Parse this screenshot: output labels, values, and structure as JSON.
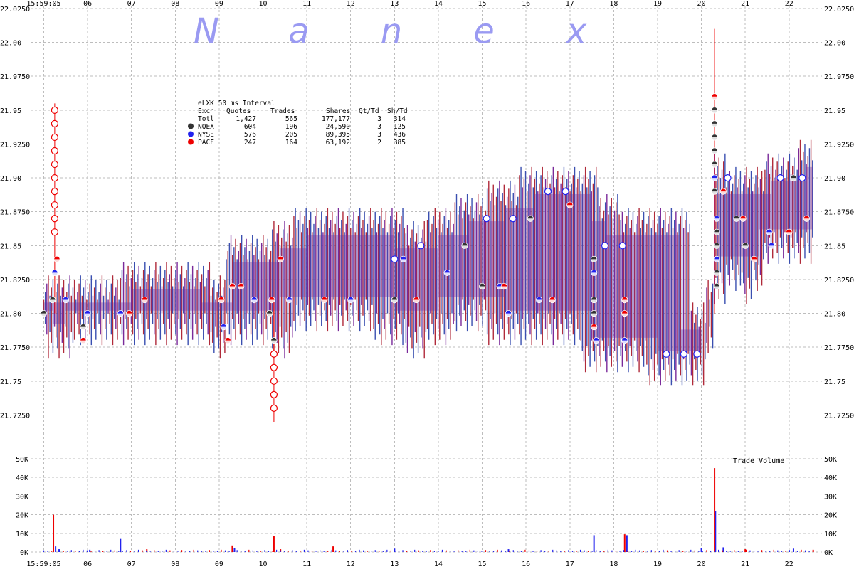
{
  "chart_data": [
    {
      "type": "line",
      "title": "",
      "watermark": "Nanex",
      "table": {
        "title": "eLXK 50 ms Interval",
        "headers": [
          "Exch",
          "Quotes",
          "Trades",
          "Shares",
          "Qt/Td",
          "Sh/Td"
        ],
        "rows": [
          {
            "exch": "Totl",
            "quotes": "1,427",
            "trades": "565",
            "shares": "177,177",
            "qt_td": "3",
            "sh_td": "314",
            "color": ""
          },
          {
            "exch": "NQEX",
            "quotes": "604",
            "trades": "196",
            "shares": "24,590",
            "qt_td": "3",
            "sh_td": "125",
            "color": "#333333"
          },
          {
            "exch": "NYSE",
            "quotes": "576",
            "trades": "205",
            "shares": "89,395",
            "qt_td": "3",
            "sh_td": "436",
            "color": "#2222ee"
          },
          {
            "exch": "PACF",
            "quotes": "247",
            "trades": "164",
            "shares": "63,192",
            "qt_td": "2",
            "sh_td": "385",
            "color": "#ee0000"
          }
        ]
      },
      "x_ticks": [
        "15:59:05",
        "06",
        "07",
        "08",
        "09",
        "10",
        "11",
        "12",
        "13",
        "14",
        "15",
        "16",
        "17",
        "18",
        "19",
        "20",
        "21",
        "22"
      ],
      "x_tick_seconds": [
        5,
        6,
        7,
        8,
        9,
        10,
        11,
        12,
        13,
        14,
        15,
        16,
        17,
        18,
        19,
        20,
        21,
        22
      ],
      "bottom_x_ticks": [
        "15:59:05",
        "06",
        "07",
        "08",
        "09",
        "10",
        "11",
        "12",
        "13",
        "14",
        "15",
        "16",
        "17",
        "18",
        "19",
        "20",
        "21",
        "22"
      ],
      "xlim_seconds": [
        4.7,
        22.75
      ],
      "y_ticks": [
        "22.0250",
        "22.00",
        "21.9750",
        "21.95",
        "21.9250",
        "21.90",
        "21.8750",
        "21.85",
        "21.8250",
        "21.80",
        "21.7750",
        "21.75",
        "21.7250"
      ],
      "ylim": [
        21.71,
        22.025
      ],
      "grid": true,
      "colors": {
        "nqex": "#333333",
        "nyse": "#2222ee",
        "pacf": "#ee0000",
        "spread": "#7a2a9a"
      },
      "bid_ask_profile": [
        {
          "x": 5.0,
          "bid": 21.8,
          "ask": 21.81
        },
        {
          "x": 5.2,
          "bid": 21.79,
          "ask": 21.81
        },
        {
          "x": 5.5,
          "bid": 21.79,
          "ask": 21.81
        },
        {
          "x": 5.9,
          "bid": 21.8,
          "ask": 21.81
        },
        {
          "x": 6.5,
          "bid": 21.8,
          "ask": 21.81
        },
        {
          "x": 7.0,
          "bid": 21.8,
          "ask": 21.82
        },
        {
          "x": 7.9,
          "bid": 21.8,
          "ask": 21.82
        },
        {
          "x": 8.6,
          "bid": 21.8,
          "ask": 21.82
        },
        {
          "x": 9.0,
          "bid": 21.79,
          "ask": 21.81
        },
        {
          "x": 9.3,
          "bid": 21.8,
          "ask": 21.84
        },
        {
          "x": 10.0,
          "bid": 21.8,
          "ask": 21.84
        },
        {
          "x": 10.4,
          "bid": 21.79,
          "ask": 21.85
        },
        {
          "x": 11.0,
          "bid": 21.81,
          "ask": 21.86
        },
        {
          "x": 12.0,
          "bid": 21.81,
          "ask": 21.86
        },
        {
          "x": 13.0,
          "bid": 21.8,
          "ask": 21.86
        },
        {
          "x": 13.5,
          "bid": 21.79,
          "ask": 21.85
        },
        {
          "x": 14.0,
          "bid": 21.8,
          "ask": 21.86
        },
        {
          "x": 14.7,
          "bid": 21.81,
          "ask": 21.87
        },
        {
          "x": 15.5,
          "bid": 21.8,
          "ask": 21.88
        },
        {
          "x": 16.2,
          "bid": 21.8,
          "ask": 21.89
        },
        {
          "x": 17.0,
          "bid": 21.8,
          "ask": 21.89
        },
        {
          "x": 17.5,
          "bid": 21.78,
          "ask": 21.89
        },
        {
          "x": 17.8,
          "bid": 21.78,
          "ask": 21.87
        },
        {
          "x": 18.5,
          "bid": 21.78,
          "ask": 21.86
        },
        {
          "x": 19.0,
          "bid": 21.77,
          "ask": 21.86
        },
        {
          "x": 19.5,
          "bid": 21.77,
          "ask": 21.86
        },
        {
          "x": 20.0,
          "bid": 21.77,
          "ask": 21.79
        },
        {
          "x": 20.2,
          "bid": 21.79,
          "ask": 21.81
        },
        {
          "x": 20.35,
          "bid": 21.83,
          "ask": 21.9
        },
        {
          "x": 20.8,
          "bid": 21.84,
          "ask": 21.89
        },
        {
          "x": 21.0,
          "bid": 21.83,
          "ask": 21.89
        },
        {
          "x": 21.3,
          "bid": 21.84,
          "ask": 21.89
        },
        {
          "x": 21.6,
          "bid": 21.86,
          "ask": 21.9
        },
        {
          "x": 22.0,
          "bid": 21.86,
          "ask": 21.9
        },
        {
          "x": 22.4,
          "bid": 21.86,
          "ask": 21.91
        },
        {
          "x": 22.55,
          "bid": 21.86,
          "ask": 21.91
        }
      ],
      "trades": [
        {
          "x": 5.0,
          "price": 21.8,
          "exch": "nqex"
        },
        {
          "x": 5.2,
          "price": 21.81,
          "exch": "nqex"
        },
        {
          "x": 5.25,
          "price": 21.83,
          "exch": "nyse"
        },
        {
          "x": 5.3,
          "price": 21.84,
          "exch": "pacf"
        },
        {
          "x": 5.5,
          "price": 21.81,
          "exch": "nyse"
        },
        {
          "x": 5.9,
          "price": 21.79,
          "exch": "nqex"
        },
        {
          "x": 5.9,
          "price": 21.78,
          "exch": "pacf"
        },
        {
          "x": 6.0,
          "price": 21.8,
          "exch": "nyse"
        },
        {
          "x": 6.75,
          "price": 21.8,
          "exch": "nyse"
        },
        {
          "x": 6.95,
          "price": 21.8,
          "exch": "pacf"
        },
        {
          "x": 7.3,
          "price": 21.81,
          "exch": "pacf"
        },
        {
          "x": 9.05,
          "price": 21.81,
          "exch": "pacf"
        },
        {
          "x": 9.1,
          "price": 21.79,
          "exch": "nyse"
        },
        {
          "x": 9.2,
          "price": 21.78,
          "exch": "pacf"
        },
        {
          "x": 9.3,
          "price": 21.82,
          "exch": "pacf"
        },
        {
          "x": 9.5,
          "price": 21.82,
          "exch": "pacf"
        },
        {
          "x": 9.8,
          "price": 21.81,
          "exch": "nyse"
        },
        {
          "x": 10.15,
          "price": 21.8,
          "exch": "nqex"
        },
        {
          "x": 10.2,
          "price": 21.81,
          "exch": "pacf"
        },
        {
          "x": 10.25,
          "price": 21.78,
          "exch": "nqex"
        },
        {
          "x": 10.4,
          "price": 21.84,
          "exch": "pacf"
        },
        {
          "x": 10.6,
          "price": 21.81,
          "exch": "nyse"
        },
        {
          "x": 11.4,
          "price": 21.81,
          "exch": "pacf"
        },
        {
          "x": 12.0,
          "price": 21.81,
          "exch": "nyse"
        },
        {
          "x": 13.0,
          "price": 21.81,
          "exch": "nqex"
        },
        {
          "x": 13.2,
          "price": 21.84,
          "exch": "nyse"
        },
        {
          "x": 13.5,
          "price": 21.81,
          "exch": "pacf"
        },
        {
          "x": 14.2,
          "price": 21.83,
          "exch": "nyse"
        },
        {
          "x": 14.6,
          "price": 21.85,
          "exch": "nqex"
        },
        {
          "x": 15.0,
          "price": 21.82,
          "exch": "nqex"
        },
        {
          "x": 15.4,
          "price": 21.82,
          "exch": "nyse"
        },
        {
          "x": 15.5,
          "price": 21.82,
          "exch": "pacf"
        },
        {
          "x": 15.6,
          "price": 21.8,
          "exch": "nyse"
        },
        {
          "x": 16.1,
          "price": 21.87,
          "exch": "nqex"
        },
        {
          "x": 16.3,
          "price": 21.81,
          "exch": "nyse"
        },
        {
          "x": 16.6,
          "price": 21.81,
          "exch": "pacf"
        },
        {
          "x": 17.0,
          "price": 21.88,
          "exch": "pacf"
        },
        {
          "x": 17.55,
          "price": 21.84,
          "exch": "nqex"
        },
        {
          "x": 17.55,
          "price": 21.83,
          "exch": "nyse"
        },
        {
          "x": 17.55,
          "price": 21.81,
          "exch": "nqex"
        },
        {
          "x": 17.55,
          "price": 21.8,
          "exch": "nqex"
        },
        {
          "x": 17.55,
          "price": 21.79,
          "exch": "pacf"
        },
        {
          "x": 17.6,
          "price": 21.78,
          "exch": "nyse"
        },
        {
          "x": 18.25,
          "price": 21.81,
          "exch": "pacf"
        },
        {
          "x": 18.25,
          "price": 21.8,
          "exch": "pacf"
        },
        {
          "x": 18.25,
          "price": 21.78,
          "exch": "nyse"
        },
        {
          "x": 20.3,
          "price": 21.96,
          "exch": "pacf"
        },
        {
          "x": 20.3,
          "price": 21.95,
          "exch": "nqex"
        },
        {
          "x": 20.3,
          "price": 21.94,
          "exch": "nqex"
        },
        {
          "x": 20.3,
          "price": 21.93,
          "exch": "nqex"
        },
        {
          "x": 20.3,
          "price": 21.92,
          "exch": "nqex"
        },
        {
          "x": 20.3,
          "price": 21.91,
          "exch": "nqex"
        },
        {
          "x": 20.3,
          "price": 21.9,
          "exch": "nyse"
        },
        {
          "x": 20.3,
          "price": 21.89,
          "exch": "nqex"
        },
        {
          "x": 20.35,
          "price": 21.87,
          "exch": "nyse"
        },
        {
          "x": 20.35,
          "price": 21.86,
          "exch": "nqex"
        },
        {
          "x": 20.35,
          "price": 21.85,
          "exch": "nqex"
        },
        {
          "x": 20.35,
          "price": 21.84,
          "exch": "nyse"
        },
        {
          "x": 20.35,
          "price": 21.83,
          "exch": "nqex"
        },
        {
          "x": 20.35,
          "price": 21.82,
          "exch": "nqex"
        },
        {
          "x": 20.5,
          "price": 21.89,
          "exch": "pacf"
        },
        {
          "x": 20.8,
          "price": 21.87,
          "exch": "nqex"
        },
        {
          "x": 20.95,
          "price": 21.87,
          "exch": "pacf"
        },
        {
          "x": 21.0,
          "price": 21.85,
          "exch": "nqex"
        },
        {
          "x": 21.2,
          "price": 21.84,
          "exch": "pacf"
        },
        {
          "x": 21.55,
          "price": 21.86,
          "exch": "nyse"
        },
        {
          "x": 21.6,
          "price": 21.85,
          "exch": "nyse"
        },
        {
          "x": 22.0,
          "price": 21.86,
          "exch": "pacf"
        },
        {
          "x": 22.1,
          "price": 21.9,
          "exch": "nqex"
        },
        {
          "x": 22.4,
          "price": 21.87,
          "exch": "pacf"
        }
      ],
      "quote_markers": [
        {
          "x": 5.25,
          "price": 21.95,
          "exch": "pacf"
        },
        {
          "x": 5.25,
          "price": 21.94,
          "exch": "pacf"
        },
        {
          "x": 5.25,
          "price": 21.93,
          "exch": "pacf"
        },
        {
          "x": 5.25,
          "price": 21.92,
          "exch": "pacf"
        },
        {
          "x": 5.25,
          "price": 21.91,
          "exch": "pacf"
        },
        {
          "x": 5.25,
          "price": 21.9,
          "exch": "pacf"
        },
        {
          "x": 5.25,
          "price": 21.89,
          "exch": "pacf"
        },
        {
          "x": 5.25,
          "price": 21.88,
          "exch": "pacf"
        },
        {
          "x": 5.25,
          "price": 21.87,
          "exch": "pacf"
        },
        {
          "x": 5.25,
          "price": 21.86,
          "exch": "pacf"
        },
        {
          "x": 10.25,
          "price": 21.77,
          "exch": "pacf"
        },
        {
          "x": 10.25,
          "price": 21.76,
          "exch": "pacf"
        },
        {
          "x": 10.25,
          "price": 21.75,
          "exch": "pacf"
        },
        {
          "x": 10.25,
          "price": 21.74,
          "exch": "pacf"
        },
        {
          "x": 10.25,
          "price": 21.73,
          "exch": "pacf"
        },
        {
          "x": 13.0,
          "price": 21.84,
          "exch": "nyse"
        },
        {
          "x": 13.6,
          "price": 21.85,
          "exch": "nyse"
        },
        {
          "x": 15.1,
          "price": 21.87,
          "exch": "nyse"
        },
        {
          "x": 15.7,
          "price": 21.87,
          "exch": "nyse"
        },
        {
          "x": 16.5,
          "price": 21.89,
          "exch": "nyse"
        },
        {
          "x": 16.9,
          "price": 21.89,
          "exch": "nyse"
        },
        {
          "x": 17.8,
          "price": 21.85,
          "exch": "nyse"
        },
        {
          "x": 18.2,
          "price": 21.85,
          "exch": "nyse"
        },
        {
          "x": 19.2,
          "price": 21.77,
          "exch": "nyse"
        },
        {
          "x": 19.6,
          "price": 21.77,
          "exch": "nyse"
        },
        {
          "x": 19.9,
          "price": 21.77,
          "exch": "nyse"
        },
        {
          "x": 20.6,
          "price": 21.9,
          "exch": "nyse"
        },
        {
          "x": 21.8,
          "price": 21.9,
          "exch": "nyse"
        },
        {
          "x": 22.3,
          "price": 21.9,
          "exch": "nyse"
        }
      ]
    },
    {
      "type": "bar",
      "title": "Trade Volume",
      "x_ticks": [
        "15:59:05",
        "06",
        "07",
        "08",
        "09",
        "10",
        "11",
        "12",
        "13",
        "14",
        "15",
        "16",
        "17",
        "18",
        "19",
        "20",
        "21",
        "22"
      ],
      "y_ticks": [
        "50K",
        "40K",
        "30K",
        "20K",
        "10K",
        "0K"
      ],
      "ylim": [
        0,
        50000
      ],
      "grid": true,
      "bars": [
        {
          "x": 5.22,
          "value": 20000,
          "exch": "pacf"
        },
        {
          "x": 5.27,
          "value": 3000,
          "exch": "nyse"
        },
        {
          "x": 5.35,
          "value": 1500,
          "exch": "nyse"
        },
        {
          "x": 6.05,
          "value": 1200,
          "exch": "nyse"
        },
        {
          "x": 6.75,
          "value": 7000,
          "exch": "nyse"
        },
        {
          "x": 7.35,
          "value": 1500,
          "exch": "pacf"
        },
        {
          "x": 9.3,
          "value": 3500,
          "exch": "pacf"
        },
        {
          "x": 9.35,
          "value": 2000,
          "exch": "nyse"
        },
        {
          "x": 10.25,
          "value": 8500,
          "exch": "pacf"
        },
        {
          "x": 10.4,
          "value": 1500,
          "exch": "pacf"
        },
        {
          "x": 11.6,
          "value": 3000,
          "exch": "pacf"
        },
        {
          "x": 13.0,
          "value": 1800,
          "exch": "nyse"
        },
        {
          "x": 15.6,
          "value": 1500,
          "exch": "nyse"
        },
        {
          "x": 17.55,
          "value": 9000,
          "exch": "nyse"
        },
        {
          "x": 18.25,
          "value": 9500,
          "exch": "pacf"
        },
        {
          "x": 18.3,
          "value": 9000,
          "exch": "nyse"
        },
        {
          "x": 20.0,
          "value": 2000,
          "exch": "nyse"
        },
        {
          "x": 20.3,
          "value": 45000,
          "exch": "pacf"
        },
        {
          "x": 20.32,
          "value": 22000,
          "exch": "nyse"
        },
        {
          "x": 20.5,
          "value": 2500,
          "exch": "nyse"
        },
        {
          "x": 21.0,
          "value": 1500,
          "exch": "pacf"
        },
        {
          "x": 22.1,
          "value": 1800,
          "exch": "nyse"
        },
        {
          "x": 22.55,
          "value": 1200,
          "exch": "pacf"
        }
      ]
    }
  ]
}
